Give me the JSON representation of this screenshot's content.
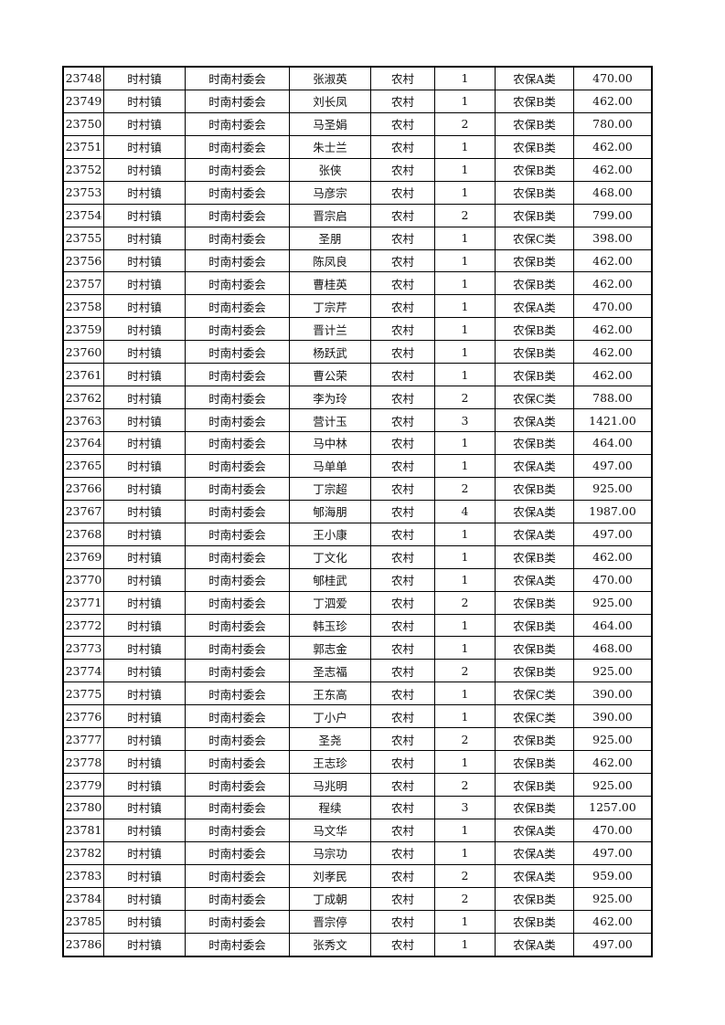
{
  "table": {
    "rows": [
      [
        "23748",
        "时村镇",
        "时南村委会",
        "张淑英",
        "农村",
        "1",
        "农保A类",
        "470.00"
      ],
      [
        "23749",
        "时村镇",
        "时南村委会",
        "刘长凤",
        "农村",
        "1",
        "农保B类",
        "462.00"
      ],
      [
        "23750",
        "时村镇",
        "时南村委会",
        "马圣娟",
        "农村",
        "2",
        "农保B类",
        "780.00"
      ],
      [
        "23751",
        "时村镇",
        "时南村委会",
        "朱士兰",
        "农村",
        "1",
        "农保B类",
        "462.00"
      ],
      [
        "23752",
        "时村镇",
        "时南村委会",
        "张侠",
        "农村",
        "1",
        "农保B类",
        "462.00"
      ],
      [
        "23753",
        "时村镇",
        "时南村委会",
        "马彦宗",
        "农村",
        "1",
        "农保B类",
        "468.00"
      ],
      [
        "23754",
        "时村镇",
        "时南村委会",
        "晋宗启",
        "农村",
        "2",
        "农保B类",
        "799.00"
      ],
      [
        "23755",
        "时村镇",
        "时南村委会",
        "圣朋",
        "农村",
        "1",
        "农保C类",
        "398.00"
      ],
      [
        "23756",
        "时村镇",
        "时南村委会",
        "陈凤良",
        "农村",
        "1",
        "农保B类",
        "462.00"
      ],
      [
        "23757",
        "时村镇",
        "时南村委会",
        "曹桂英",
        "农村",
        "1",
        "农保B类",
        "462.00"
      ],
      [
        "23758",
        "时村镇",
        "时南村委会",
        "丁宗芹",
        "农村",
        "1",
        "农保A类",
        "470.00"
      ],
      [
        "23759",
        "时村镇",
        "时南村委会",
        "晋计兰",
        "农村",
        "1",
        "农保B类",
        "462.00"
      ],
      [
        "23760",
        "时村镇",
        "时南村委会",
        "杨跃武",
        "农村",
        "1",
        "农保B类",
        "462.00"
      ],
      [
        "23761",
        "时村镇",
        "时南村委会",
        "曹公荣",
        "农村",
        "1",
        "农保B类",
        "462.00"
      ],
      [
        "23762",
        "时村镇",
        "时南村委会",
        "李为玲",
        "农村",
        "2",
        "农保C类",
        "788.00"
      ],
      [
        "23763",
        "时村镇",
        "时南村委会",
        "营计玉",
        "农村",
        "3",
        "农保A类",
        "1421.00"
      ],
      [
        "23764",
        "时村镇",
        "时南村委会",
        "马中林",
        "农村",
        "1",
        "农保B类",
        "464.00"
      ],
      [
        "23765",
        "时村镇",
        "时南村委会",
        "马单单",
        "农村",
        "1",
        "农保A类",
        "497.00"
      ],
      [
        "23766",
        "时村镇",
        "时南村委会",
        "丁宗超",
        "农村",
        "2",
        "农保B类",
        "925.00"
      ],
      [
        "23767",
        "时村镇",
        "时南村委会",
        "郇海朋",
        "农村",
        "4",
        "农保A类",
        "1987.00"
      ],
      [
        "23768",
        "时村镇",
        "时南村委会",
        "王小康",
        "农村",
        "1",
        "农保A类",
        "497.00"
      ],
      [
        "23769",
        "时村镇",
        "时南村委会",
        "丁文化",
        "农村",
        "1",
        "农保B类",
        "462.00"
      ],
      [
        "23770",
        "时村镇",
        "时南村委会",
        "郇桂武",
        "农村",
        "1",
        "农保A类",
        "470.00"
      ],
      [
        "23771",
        "时村镇",
        "时南村委会",
        "丁泗爱",
        "农村",
        "2",
        "农保B类",
        "925.00"
      ],
      [
        "23772",
        "时村镇",
        "时南村委会",
        "韩玉珍",
        "农村",
        "1",
        "农保B类",
        "464.00"
      ],
      [
        "23773",
        "时村镇",
        "时南村委会",
        "郭志金",
        "农村",
        "1",
        "农保B类",
        "468.00"
      ],
      [
        "23774",
        "时村镇",
        "时南村委会",
        "圣志福",
        "农村",
        "2",
        "农保B类",
        "925.00"
      ],
      [
        "23775",
        "时村镇",
        "时南村委会",
        "王东高",
        "农村",
        "1",
        "农保C类",
        "390.00"
      ],
      [
        "23776",
        "时村镇",
        "时南村委会",
        "丁小户",
        "农村",
        "1",
        "农保C类",
        "390.00"
      ],
      [
        "23777",
        "时村镇",
        "时南村委会",
        "圣尧",
        "农村",
        "2",
        "农保B类",
        "925.00"
      ],
      [
        "23778",
        "时村镇",
        "时南村委会",
        "王志珍",
        "农村",
        "1",
        "农保B类",
        "462.00"
      ],
      [
        "23779",
        "时村镇",
        "时南村委会",
        "马兆明",
        "农村",
        "2",
        "农保B类",
        "925.00"
      ],
      [
        "23780",
        "时村镇",
        "时南村委会",
        "程续",
        "农村",
        "3",
        "农保B类",
        "1257.00"
      ],
      [
        "23781",
        "时村镇",
        "时南村委会",
        "马文华",
        "农村",
        "1",
        "农保A类",
        "470.00"
      ],
      [
        "23782",
        "时村镇",
        "时南村委会",
        "马宗功",
        "农村",
        "1",
        "农保A类",
        "497.00"
      ],
      [
        "23783",
        "时村镇",
        "时南村委会",
        "刘孝民",
        "农村",
        "2",
        "农保A类",
        "959.00"
      ],
      [
        "23784",
        "时村镇",
        "时南村委会",
        "丁成朝",
        "农村",
        "2",
        "农保B类",
        "925.00"
      ],
      [
        "23785",
        "时村镇",
        "时南村委会",
        "晋宗停",
        "农村",
        "1",
        "农保B类",
        "462.00"
      ],
      [
        "23786",
        "时村镇",
        "时南村委会",
        "张秀文",
        "农村",
        "1",
        "农保A类",
        "497.00"
      ]
    ]
  }
}
